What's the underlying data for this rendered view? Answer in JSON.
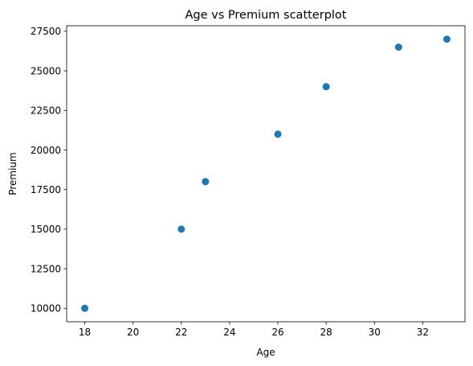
{
  "chart_data": {
    "type": "scatter",
    "title": "Age vs Premium scatterplot",
    "xlabel": "Age",
    "ylabel": "Premium",
    "x": [
      18,
      22,
      23,
      26,
      28,
      31,
      33
    ],
    "y": [
      10000,
      15000,
      18000,
      21000,
      24000,
      26500,
      27000
    ],
    "xlim": [
      17.25,
      33.75
    ],
    "ylim": [
      9150,
      27850
    ],
    "xticks": [
      18,
      20,
      22,
      24,
      26,
      28,
      30,
      32
    ],
    "yticks": [
      10000,
      12500,
      15000,
      17500,
      20000,
      22500,
      25000,
      27500
    ],
    "grid": false,
    "marker_color": "#1f77b4"
  }
}
